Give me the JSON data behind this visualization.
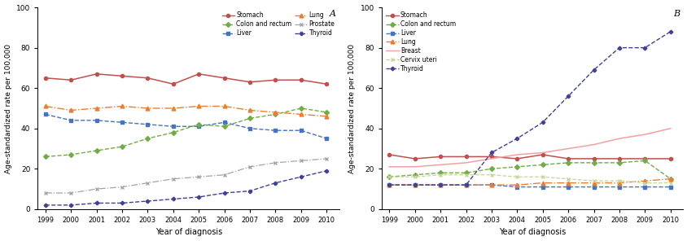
{
  "years": [
    1999,
    2000,
    2001,
    2002,
    2003,
    2004,
    2005,
    2006,
    2007,
    2008,
    2009,
    2010
  ],
  "panel_A": {
    "Stomach": [
      65,
      64,
      67,
      66,
      65,
      62,
      67,
      65,
      63,
      64,
      64,
      62
    ],
    "Liver": [
      47,
      44,
      44,
      43,
      42,
      41,
      41,
      43,
      40,
      39,
      39,
      35
    ],
    "Prostate": [
      8,
      8,
      10,
      11,
      13,
      15,
      16,
      17,
      21,
      23,
      24,
      25
    ],
    "Colon_rectum": [
      26,
      27,
      29,
      31,
      35,
      38,
      42,
      41,
      45,
      47,
      50,
      48
    ],
    "Lung": [
      51,
      49,
      50,
      51,
      50,
      50,
      51,
      51,
      49,
      48,
      47,
      46
    ],
    "Thyroid": [
      2,
      2,
      3,
      3,
      4,
      5,
      6,
      8,
      9,
      13,
      16,
      19
    ]
  },
  "panel_B": {
    "Stomach": [
      27,
      25,
      26,
      26,
      26,
      25,
      27,
      25,
      25,
      25,
      25,
      25
    ],
    "Colon_rectum": [
      16,
      17,
      18,
      18,
      20,
      21,
      22,
      23,
      23,
      23,
      24,
      15
    ],
    "Liver": [
      12,
      12,
      12,
      12,
      12,
      11,
      11,
      11,
      11,
      11,
      11,
      11
    ],
    "Lung": [
      12,
      12,
      12,
      12,
      12,
      12,
      13,
      13,
      13,
      13,
      14,
      15
    ],
    "Breast": [
      21,
      21,
      22,
      23,
      25,
      27,
      28,
      30,
      32,
      35,
      37,
      40
    ],
    "Cervix_uteri": [
      16,
      16,
      17,
      17,
      17,
      16,
      16,
      15,
      14,
      14,
      13,
      13
    ],
    "Thyroid": [
      12,
      12,
      12,
      12,
      28,
      35,
      43,
      56,
      69,
      80,
      80,
      88
    ]
  },
  "colors": {
    "Stomach": "#c0504d",
    "Liver": "#4472c4",
    "Prostate": "#a5a5a5",
    "Colon_rectum": "#70ad47",
    "Lung": "#ed7d31",
    "Thyroid": "#404099",
    "Breast": "#f4a0a0",
    "Cervix_uteri": "#c4d79b"
  },
  "ylim": [
    0,
    100
  ],
  "yticks": [
    0,
    20,
    40,
    60,
    80,
    100
  ],
  "xlabel": "Year of diagnosis",
  "ylabel": "Age-standardized rate per 100,000"
}
